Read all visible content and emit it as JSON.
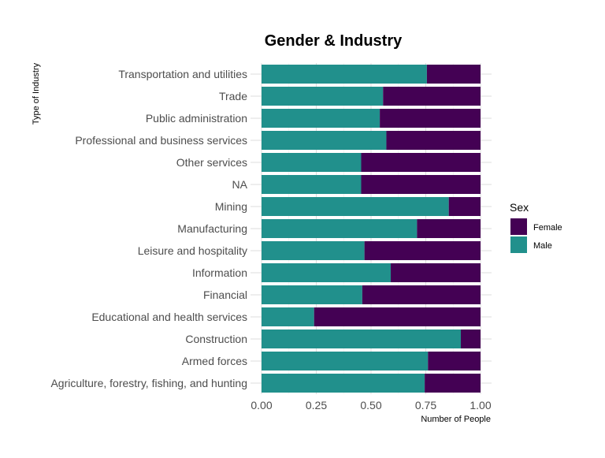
{
  "chart_data": {
    "type": "bar",
    "orientation": "horizontal",
    "stacked": true,
    "title": "Gender & Industry",
    "xlabel": "Number of People",
    "ylabel": "Type of Industry",
    "xlim": [
      0,
      1
    ],
    "xticks": [
      "0.00",
      "0.25",
      "0.50",
      "0.75",
      "1.00"
    ],
    "grid": true,
    "legend_position": "right",
    "categories": [
      "Transportation and utilities",
      "Trade",
      "Public administration",
      "Professional and business services",
      "Other services",
      "NA",
      "Mining",
      "Manufacturing",
      "Leisure and hospitality",
      "Information",
      "Financial",
      "Educational and health services",
      "Construction",
      "Armed forces",
      "Agriculture, forestry, fishing, and hunting"
    ],
    "series": [
      {
        "name": "Male",
        "color": "#21908C",
        "values": [
          0.755,
          0.555,
          0.54,
          0.57,
          0.455,
          0.455,
          0.855,
          0.71,
          0.47,
          0.59,
          0.46,
          0.24,
          0.91,
          0.76,
          0.745
        ]
      },
      {
        "name": "Female",
        "color": "#440154",
        "values": [
          0.245,
          0.445,
          0.46,
          0.43,
          0.545,
          0.545,
          0.145,
          0.29,
          0.53,
          0.41,
          0.54,
          0.76,
          0.09,
          0.24,
          0.255
        ]
      }
    ],
    "legend": {
      "title": "Sex",
      "items": [
        {
          "label": "Female",
          "color": "#440154"
        },
        {
          "label": "Male",
          "color": "#21908C"
        }
      ]
    }
  }
}
